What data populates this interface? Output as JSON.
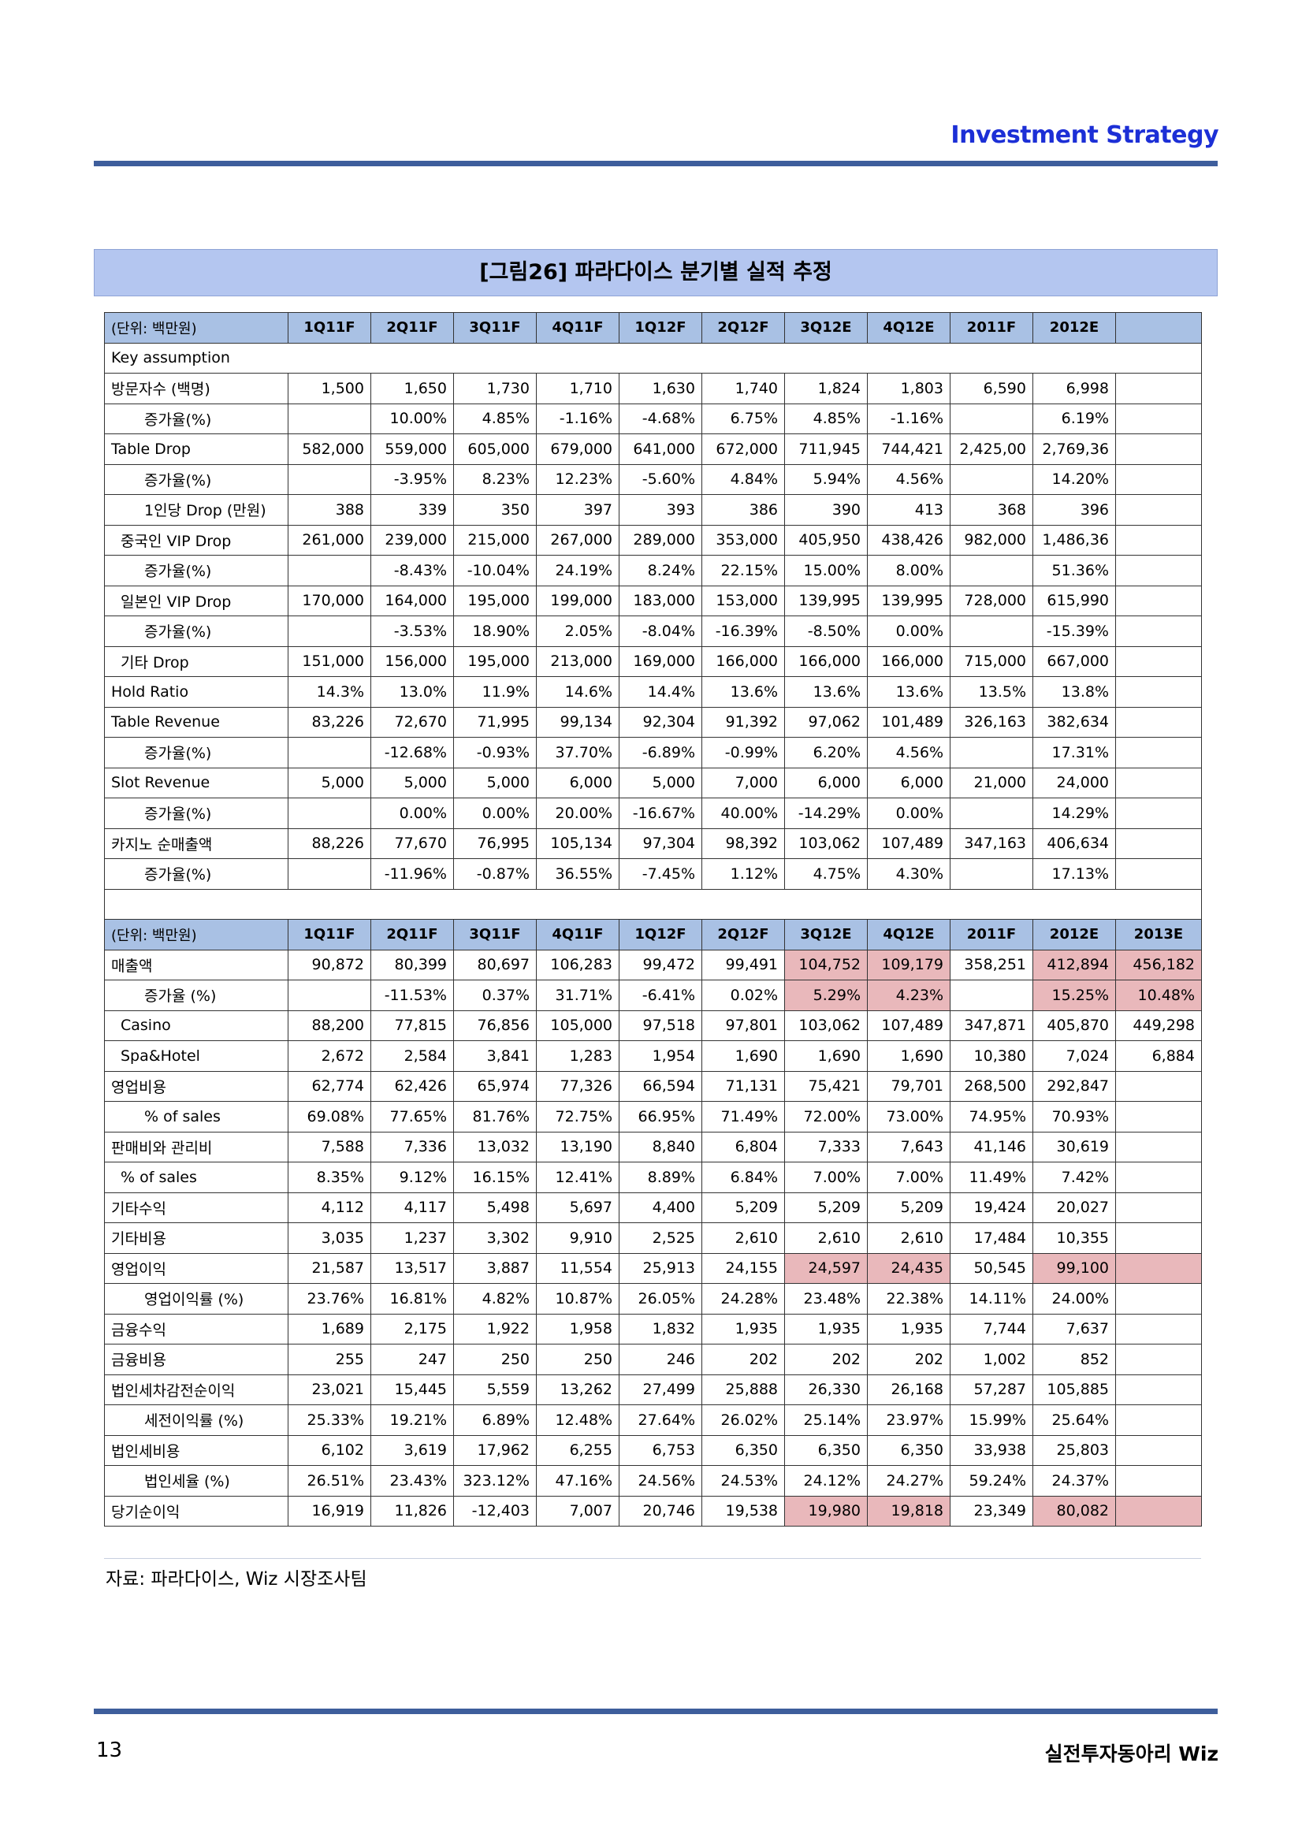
{
  "header": {
    "title": "Investment Strategy"
  },
  "figure": {
    "title": "[그림26] 파라다이스 분기별 실적 추정"
  },
  "table1": {
    "headers": [
      "(단위: 백만원)",
      "1Q11F",
      "2Q11F",
      "3Q11F",
      "4Q11F",
      "1Q12F",
      "2Q12F",
      "3Q12E",
      "4Q12E",
      "2011F",
      "2012E",
      ""
    ],
    "rows": [
      {
        "label": "Key assumption",
        "indent": 0,
        "values": null
      },
      {
        "label": "방문자수 (백명)",
        "indent": 0,
        "values": [
          "1,500",
          "1,650",
          "1,730",
          "1,710",
          "1,630",
          "1,740",
          "1,824",
          "1,803",
          "6,590",
          "6,998",
          ""
        ]
      },
      {
        "label": "증가율(%)",
        "indent": 2,
        "values": [
          "",
          "10.00%",
          "4.85%",
          "-1.16%",
          "-4.68%",
          "6.75%",
          "4.85%",
          "-1.16%",
          "",
          "6.19%",
          ""
        ]
      },
      {
        "label": "Table Drop",
        "indent": 0,
        "values": [
          "582,000",
          "559,000",
          "605,000",
          "679,000",
          "641,000",
          "672,000",
          "711,945",
          "744,421",
          "2,425,00",
          "2,769,36",
          ""
        ]
      },
      {
        "label": "증가율(%)",
        "indent": 2,
        "values": [
          "",
          "-3.95%",
          "8.23%",
          "12.23%",
          "-5.60%",
          "4.84%",
          "5.94%",
          "4.56%",
          "",
          "14.20%",
          ""
        ]
      },
      {
        "label": "1인당 Drop (만원)",
        "indent": 2,
        "values": [
          "388",
          "339",
          "350",
          "397",
          "393",
          "386",
          "390",
          "413",
          "368",
          "396",
          ""
        ]
      },
      {
        "label": "중국인 VIP Drop",
        "indent": 1,
        "values": [
          "261,000",
          "239,000",
          "215,000",
          "267,000",
          "289,000",
          "353,000",
          "405,950",
          "438,426",
          "982,000",
          "1,486,36",
          ""
        ]
      },
      {
        "label": "증가율(%)",
        "indent": 2,
        "values": [
          "",
          "-8.43%",
          "-10.04%",
          "24.19%",
          "8.24%",
          "22.15%",
          "15.00%",
          "8.00%",
          "",
          "51.36%",
          ""
        ]
      },
      {
        "label": "일본인 VIP Drop",
        "indent": 1,
        "values": [
          "170,000",
          "164,000",
          "195,000",
          "199,000",
          "183,000",
          "153,000",
          "139,995",
          "139,995",
          "728,000",
          "615,990",
          ""
        ]
      },
      {
        "label": "증가율(%)",
        "indent": 2,
        "values": [
          "",
          "-3.53%",
          "18.90%",
          "2.05%",
          "-8.04%",
          "-16.39%",
          "-8.50%",
          "0.00%",
          "",
          "-15.39%",
          ""
        ]
      },
      {
        "label": "기타 Drop",
        "indent": 1,
        "values": [
          "151,000",
          "156,000",
          "195,000",
          "213,000",
          "169,000",
          "166,000",
          "166,000",
          "166,000",
          "715,000",
          "667,000",
          ""
        ]
      },
      {
        "label": "Hold Ratio",
        "indent": 0,
        "values": [
          "14.3%",
          "13.0%",
          "11.9%",
          "14.6%",
          "14.4%",
          "13.6%",
          "13.6%",
          "13.6%",
          "13.5%",
          "13.8%",
          ""
        ]
      },
      {
        "label": "Table Revenue",
        "indent": 0,
        "values": [
          "83,226",
          "72,670",
          "71,995",
          "99,134",
          "92,304",
          "91,392",
          "97,062",
          "101,489",
          "326,163",
          "382,634",
          ""
        ]
      },
      {
        "label": "증가율(%)",
        "indent": 2,
        "values": [
          "",
          "-12.68%",
          "-0.93%",
          "37.70%",
          "-6.89%",
          "-0.99%",
          "6.20%",
          "4.56%",
          "",
          "17.31%",
          ""
        ]
      },
      {
        "label": "Slot Revenue",
        "indent": 0,
        "values": [
          "5,000",
          "5,000",
          "5,000",
          "6,000",
          "5,000",
          "7,000",
          "6,000",
          "6,000",
          "21,000",
          "24,000",
          ""
        ]
      },
      {
        "label": "증가율(%)",
        "indent": 2,
        "values": [
          "",
          "0.00%",
          "0.00%",
          "20.00%",
          "-16.67%",
          "40.00%",
          "-14.29%",
          "0.00%",
          "",
          "14.29%",
          ""
        ]
      },
      {
        "label": "카지노 순매출액",
        "indent": 0,
        "values": [
          "88,226",
          "77,670",
          "76,995",
          "105,134",
          "97,304",
          "98,392",
          "103,062",
          "107,489",
          "347,163",
          "406,634",
          ""
        ]
      },
      {
        "label": "증가율(%)",
        "indent": 2,
        "values": [
          "",
          "-11.96%",
          "-0.87%",
          "36.55%",
          "-7.45%",
          "1.12%",
          "4.75%",
          "4.30%",
          "",
          "17.13%",
          ""
        ]
      }
    ]
  },
  "table2": {
    "headers": [
      "(단위: 백만원)",
      "1Q11F",
      "2Q11F",
      "3Q11F",
      "4Q11F",
      "1Q12F",
      "2Q12F",
      "3Q12E",
      "4Q12E",
      "2011F",
      "2012E",
      "2013E"
    ],
    "rows": [
      {
        "label": "매출액",
        "indent": 0,
        "values": [
          "90,872",
          "80,399",
          "80,697",
          "106,283",
          "99,472",
          "99,491",
          "104,752",
          "109,179",
          "358,251",
          "412,894",
          "456,182"
        ],
        "hl": [
          6,
          7,
          9,
          10
        ]
      },
      {
        "label": "증가율 (%)",
        "indent": 2,
        "values": [
          "",
          "-11.53%",
          "0.37%",
          "31.71%",
          "-6.41%",
          "0.02%",
          "5.29%",
          "4.23%",
          "",
          "15.25%",
          "10.48%"
        ],
        "hl": [
          6,
          7,
          9,
          10
        ]
      },
      {
        "label": "Casino",
        "indent": 1,
        "values": [
          "88,200",
          "77,815",
          "76,856",
          "105,000",
          "97,518",
          "97,801",
          "103,062",
          "107,489",
          "347,871",
          "405,870",
          "449,298"
        ],
        "hl": []
      },
      {
        "label": "Spa&Hotel",
        "indent": 1,
        "values": [
          "2,672",
          "2,584",
          "3,841",
          "1,283",
          "1,954",
          "1,690",
          "1,690",
          "1,690",
          "10,380",
          "7,024",
          "6,884"
        ],
        "hl": []
      },
      {
        "label": "영업비용",
        "indent": 0,
        "values": [
          "62,774",
          "62,426",
          "65,974",
          "77,326",
          "66,594",
          "71,131",
          "75,421",
          "79,701",
          "268,500",
          "292,847",
          ""
        ],
        "hl": []
      },
      {
        "label": "% of sales",
        "indent": 2,
        "values": [
          "69.08%",
          "77.65%",
          "81.76%",
          "72.75%",
          "66.95%",
          "71.49%",
          "72.00%",
          "73.00%",
          "74.95%",
          "70.93%",
          ""
        ],
        "hl": []
      },
      {
        "label": "판매비와 관리비",
        "indent": 0,
        "values": [
          "7,588",
          "7,336",
          "13,032",
          "13,190",
          "8,840",
          "6,804",
          "7,333",
          "7,643",
          "41,146",
          "30,619",
          ""
        ],
        "hl": []
      },
      {
        "label": "% of sales",
        "indent": 1,
        "values": [
          "8.35%",
          "9.12%",
          "16.15%",
          "12.41%",
          "8.89%",
          "6.84%",
          "7.00%",
          "7.00%",
          "11.49%",
          "7.42%",
          ""
        ],
        "hl": []
      },
      {
        "label": "기타수익",
        "indent": 0,
        "values": [
          "4,112",
          "4,117",
          "5,498",
          "5,697",
          "4,400",
          "5,209",
          "5,209",
          "5,209",
          "19,424",
          "20,027",
          ""
        ],
        "hl": []
      },
      {
        "label": "기타비용",
        "indent": 0,
        "values": [
          "3,035",
          "1,237",
          "3,302",
          "9,910",
          "2,525",
          "2,610",
          "2,610",
          "2,610",
          "17,484",
          "10,355",
          ""
        ],
        "hl": []
      },
      {
        "label": "영업이익",
        "indent": 0,
        "values": [
          "21,587",
          "13,517",
          "3,887",
          "11,554",
          "25,913",
          "24,155",
          "24,597",
          "24,435",
          "50,545",
          "99,100",
          ""
        ],
        "hl": [
          6,
          7,
          9,
          10
        ]
      },
      {
        "label": "영업이익률 (%)",
        "indent": 2,
        "values": [
          "23.76%",
          "16.81%",
          "4.82%",
          "10.87%",
          "26.05%",
          "24.28%",
          "23.48%",
          "22.38%",
          "14.11%",
          "24.00%",
          ""
        ],
        "hl": []
      },
      {
        "label": "금융수익",
        "indent": 0,
        "values": [
          "1,689",
          "2,175",
          "1,922",
          "1,958",
          "1,832",
          "1,935",
          "1,935",
          "1,935",
          "7,744",
          "7,637",
          ""
        ],
        "hl": []
      },
      {
        "label": "금융비용",
        "indent": 0,
        "values": [
          "255",
          "247",
          "250",
          "250",
          "246",
          "202",
          "202",
          "202",
          "1,002",
          "852",
          ""
        ],
        "hl": []
      },
      {
        "label": "법인세차감전순이익",
        "indent": 0,
        "values": [
          "23,021",
          "15,445",
          "5,559",
          "13,262",
          "27,499",
          "25,888",
          "26,330",
          "26,168",
          "57,287",
          "105,885",
          ""
        ],
        "hl": []
      },
      {
        "label": "세전이익률 (%)",
        "indent": 2,
        "values": [
          "25.33%",
          "19.21%",
          "6.89%",
          "12.48%",
          "27.64%",
          "26.02%",
          "25.14%",
          "23.97%",
          "15.99%",
          "25.64%",
          ""
        ],
        "hl": []
      },
      {
        "label": "법인세비용",
        "indent": 0,
        "values": [
          "6,102",
          "3,619",
          "17,962",
          "6,255",
          "6,753",
          "6,350",
          "6,350",
          "6,350",
          "33,938",
          "25,803",
          ""
        ],
        "hl": []
      },
      {
        "label": "법인세율 (%)",
        "indent": 2,
        "values": [
          "26.51%",
          "23.43%",
          "323.12%",
          "47.16%",
          "24.56%",
          "24.53%",
          "24.12%",
          "24.27%",
          "59.24%",
          "24.37%",
          ""
        ],
        "hl": []
      },
      {
        "label": "당기순이익",
        "indent": 0,
        "values": [
          "16,919",
          "11,826",
          "-12,403",
          "7,007",
          "20,746",
          "19,538",
          "19,980",
          "19,818",
          "23,349",
          "80,082",
          ""
        ],
        "hl": [
          6,
          7,
          9,
          10
        ]
      }
    ]
  },
  "source": "자료: 파라다이스, Wiz 시장조사팀",
  "footer": {
    "page_number": "13",
    "brand": "실전투자동아리 Wiz"
  },
  "colors": {
    "accent_blue": "#1c2fd6",
    "rule": "#3e5e9c",
    "header_fill": "#a9c1e4",
    "highlight": "#e9b8bb"
  }
}
